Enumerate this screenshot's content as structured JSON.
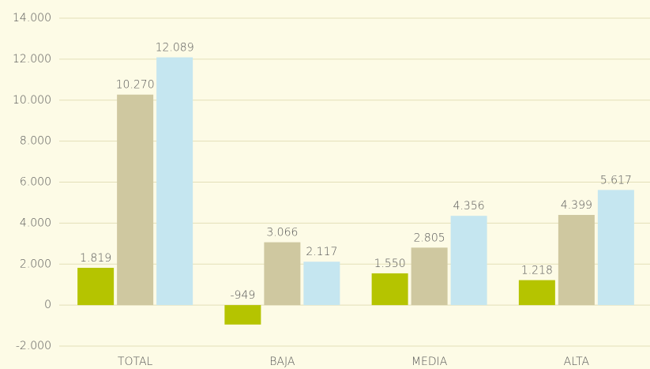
{
  "chart_data": {
    "type": "bar",
    "categories": [
      "TOTAL",
      "BAJA",
      "MEDIA",
      "ALTA"
    ],
    "series": [
      {
        "color": "#b5c400",
        "values": [
          1819,
          -949,
          1550,
          1218
        ],
        "value_labels": [
          "1.819",
          "-949",
          "1.550",
          "1.218"
        ]
      },
      {
        "color": "#cfc8a0",
        "values": [
          10270,
          3066,
          2805,
          4399
        ],
        "value_labels": [
          "10.270",
          "3.066",
          "2.805",
          "4.399"
        ]
      },
      {
        "color": "#c5e6f0",
        "values": [
          12089,
          2117,
          4356,
          5617
        ],
        "value_labels": [
          "12.089",
          "2.117",
          "4.356",
          "5.617"
        ]
      }
    ],
    "ylim": [
      -2000,
      14000
    ],
    "yticks": [
      {
        "value": -2000,
        "label": "-2.000"
      },
      0,
      {
        "value": 2000,
        "label": "2.000"
      },
      {
        "value": 4000,
        "label": "4.000"
      },
      {
        "value": 6000,
        "label": "6.000"
      },
      {
        "value": 8000,
        "label": "8.000"
      },
      {
        "value": 10000,
        "label": "10.000"
      },
      {
        "value": 12000,
        "label": "12.000"
      },
      {
        "value": 14000,
        "label": "14.000"
      }
    ],
    "grid": true
  }
}
